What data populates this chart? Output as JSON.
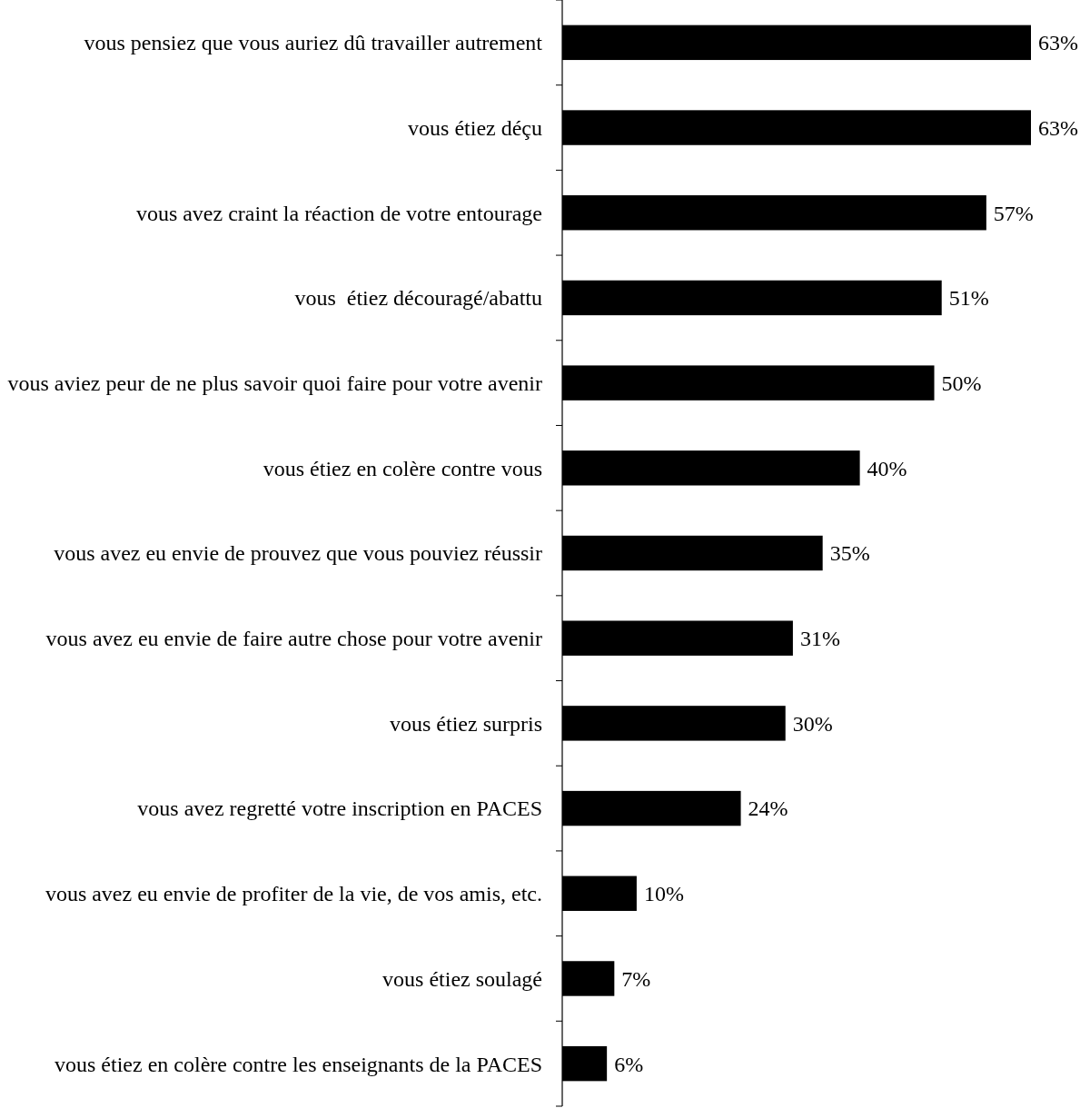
{
  "chart_data": {
    "type": "bar",
    "orientation": "horizontal",
    "color": "#000000",
    "value_labels": [
      "63%",
      "63%",
      "57%",
      "51%",
      "50%",
      "40%",
      "35%",
      "31%",
      "30%",
      "24%",
      "10%",
      "7%",
      "6%"
    ],
    "categories": [
      "vous pensiez que vous auriez dû travailler autrement",
      "vous étiez déçu",
      "vous avez craint la réaction de votre entourage",
      "vous  étiez découragé/abattu",
      "vous aviez peur de ne plus savoir quoi faire pour votre avenir",
      "vous étiez en colère contre vous",
      "vous avez eu envie de prouvez que vous pouviez réussir",
      "vous avez eu envie de faire autre chose pour votre avenir",
      "vous étiez surpris",
      "vous avez regretté votre inscription en PACES",
      "vous avez eu envie de profiter de la vie, de vos amis, etc.",
      "vous étiez soulagé",
      "vous étiez en colère contre les enseignants de la PACES"
    ],
    "values": [
      63,
      63,
      57,
      51,
      50,
      40,
      35,
      31,
      30,
      24,
      10,
      7,
      6
    ]
  }
}
